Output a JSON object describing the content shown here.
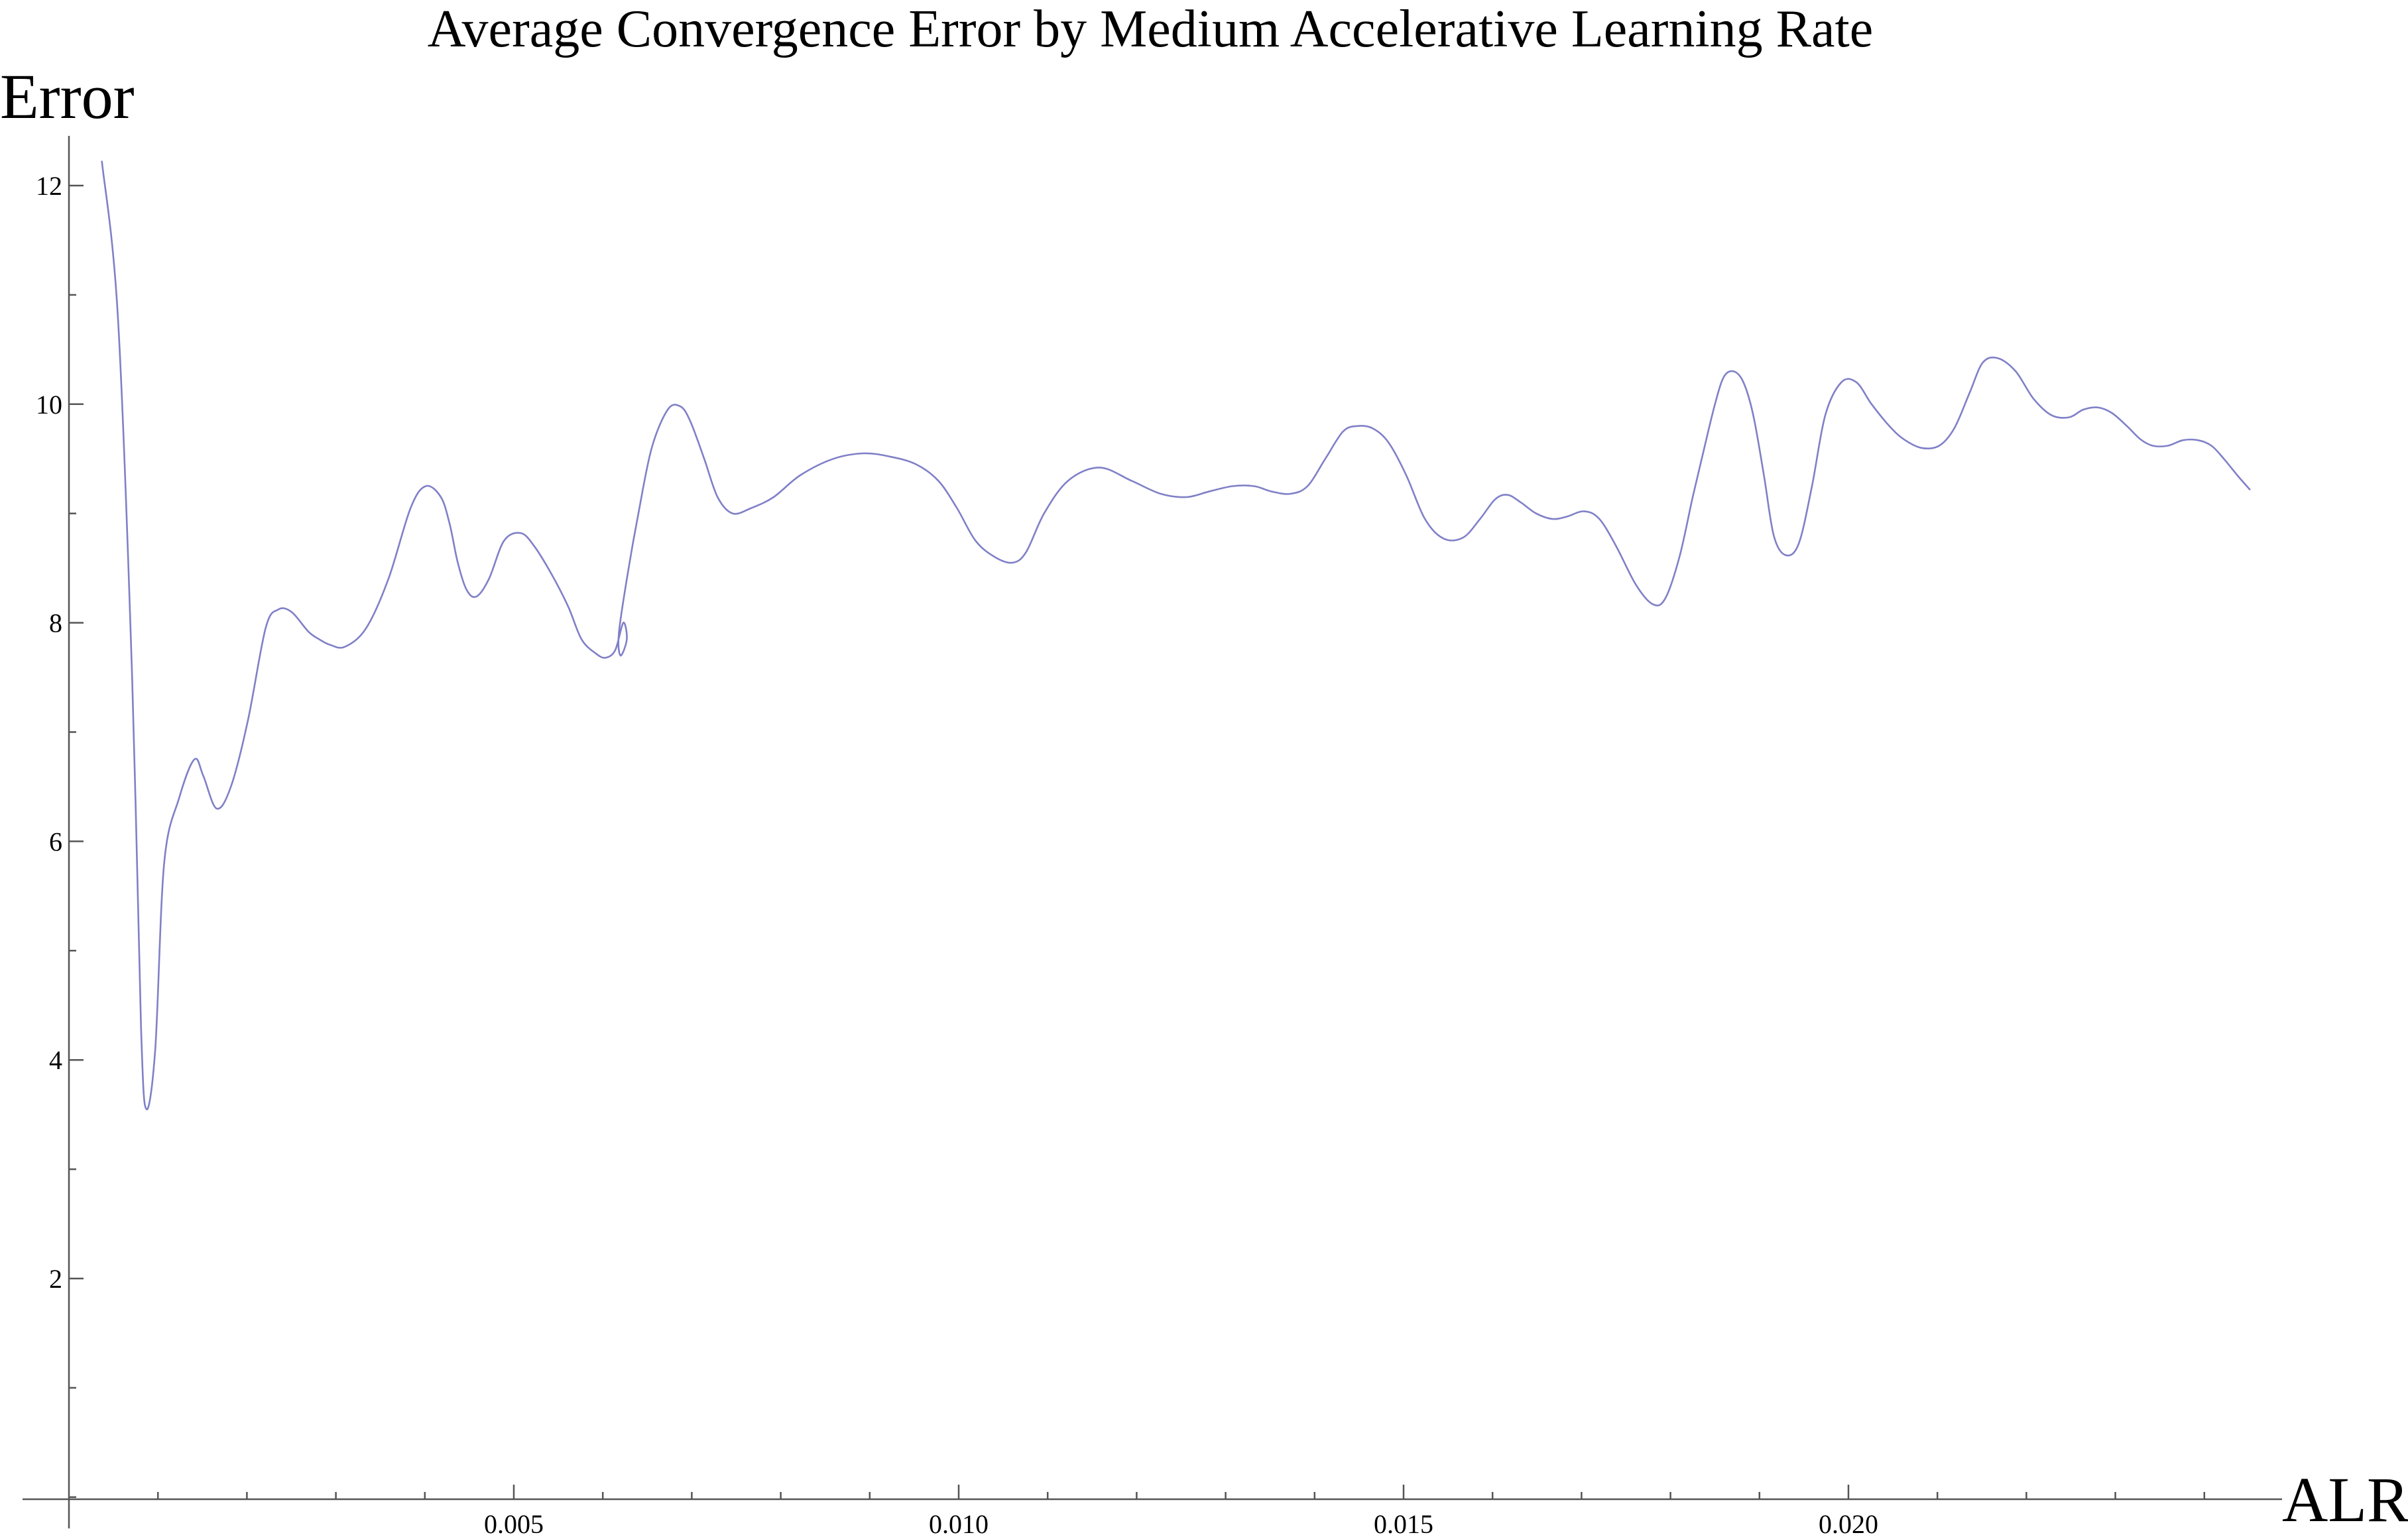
{
  "chart_data": {
    "type": "line",
    "title": "Average Convergence Error by Medium Accelerative Learning Rate",
    "xlabel": "ALR",
    "ylabel": "Error",
    "xlim": [
      0,
      0.02495
    ],
    "ylim": [
      -2.05,
      12.45
    ],
    "x_ticks": [
      {
        "value": 0.005,
        "label": "0.005"
      },
      {
        "value": 0.01,
        "label": "0.010"
      },
      {
        "value": 0.015,
        "label": "0.015"
      },
      {
        "value": 0.02,
        "label": "0.020"
      }
    ],
    "x_minor_ticks": [
      0.001,
      0.002,
      0.003,
      0.004,
      0.006,
      0.007,
      0.008,
      0.009,
      0.011,
      0.012,
      0.013,
      0.014,
      0.016,
      0.017,
      0.018,
      0.019,
      0.021,
      0.022,
      0.023,
      0.024
    ],
    "y_ticks": [
      {
        "value": 2,
        "label": "2"
      },
      {
        "value": 4,
        "label": "4"
      },
      {
        "value": 6,
        "label": "6"
      },
      {
        "value": 8,
        "label": "8"
      },
      {
        "value": 10,
        "label": "10"
      },
      {
        "value": 12,
        "label": "12"
      }
    ],
    "y_minor_ticks": [
      -1,
      0,
      1,
      3,
      5,
      7,
      9,
      11
    ],
    "grid": false,
    "series": [
      {
        "color": "#8080c8",
        "x": [
          0.00037,
          0.00055,
          0.00071,
          0.00081,
          0.00087,
          0.00097,
          0.00107,
          0.00124,
          0.00141,
          0.00151,
          0.00166,
          0.00182,
          0.00201,
          0.00221,
          0.00235,
          0.0025,
          0.00269,
          0.00281,
          0.00293,
          0.0031,
          0.00334,
          0.00359,
          0.00384,
          0.00401,
          0.00418,
          0.00428,
          0.00437,
          0.00447,
          0.00458,
          0.00472,
          0.00489,
          0.00508,
          0.00523,
          0.00542,
          0.00561,
          0.00576,
          0.00592,
          0.00603,
          0.00614,
          0.00623,
          0.00627,
          0.0062,
          0.00618,
          0.00628,
          0.0064,
          0.00655,
          0.00673,
          0.00687,
          0.00698,
          0.00714,
          0.00729,
          0.00746,
          0.00767,
          0.00792,
          0.00822,
          0.00859,
          0.00893,
          0.00923,
          0.00952,
          0.00977,
          0.00998,
          0.01019,
          0.01041,
          0.01061,
          0.01076,
          0.01096,
          0.01123,
          0.01158,
          0.01194,
          0.01227,
          0.01256,
          0.01281,
          0.01308,
          0.01332,
          0.01352,
          0.01373,
          0.01392,
          0.01412,
          0.01432,
          0.01448,
          0.01465,
          0.01483,
          0.01503,
          0.01524,
          0.01545,
          0.01567,
          0.01586,
          0.01603,
          0.01617,
          0.01632,
          0.01649,
          0.01667,
          0.01683,
          0.01703,
          0.0172,
          0.01739,
          0.01761,
          0.0178,
          0.01794,
          0.0181,
          0.01825,
          0.01838,
          0.0185,
          0.0186,
          0.01871,
          0.01882,
          0.01893,
          0.01905,
          0.01916,
          0.01929,
          0.01944,
          0.01959,
          0.01974,
          0.01992,
          0.02009,
          0.02026,
          0.02046,
          0.02062,
          0.02082,
          0.02102,
          0.02119,
          0.02136,
          0.02151,
          0.02168,
          0.02188,
          0.02208,
          0.02228,
          0.02248,
          0.02264,
          0.0228,
          0.02296,
          0.02313,
          0.02328,
          0.02342,
          0.02359,
          0.02376,
          0.02393,
          0.02408,
          0.02422,
          0.02437,
          0.02451
        ],
        "y": [
          12.22,
          10.8,
          7.5,
          4.3,
          3.55,
          4.1,
          5.8,
          6.4,
          6.75,
          6.6,
          6.3,
          6.5,
          7.1,
          7.95,
          8.12,
          8.1,
          7.92,
          7.85,
          7.8,
          7.78,
          7.95,
          8.4,
          9.05,
          9.25,
          9.15,
          8.9,
          8.55,
          8.3,
          8.24,
          8.4,
          8.75,
          8.82,
          8.7,
          8.45,
          8.15,
          7.85,
          7.72,
          7.68,
          7.75,
          8.0,
          7.85,
          7.7,
          7.9,
          8.45,
          9.0,
          9.6,
          9.95,
          9.98,
          9.85,
          9.5,
          9.15,
          9.0,
          9.05,
          9.15,
          9.35,
          9.5,
          9.55,
          9.52,
          9.45,
          9.3,
          9.05,
          8.75,
          8.6,
          8.55,
          8.65,
          9.0,
          9.3,
          9.42,
          9.3,
          9.18,
          9.15,
          9.2,
          9.25,
          9.25,
          9.2,
          9.18,
          9.25,
          9.5,
          9.75,
          9.8,
          9.78,
          9.65,
          9.35,
          8.95,
          8.77,
          8.78,
          8.95,
          9.13,
          9.17,
          9.1,
          9.0,
          8.95,
          8.97,
          9.02,
          8.95,
          8.7,
          8.35,
          8.17,
          8.22,
          8.6,
          9.15,
          9.6,
          10.0,
          10.25,
          10.3,
          10.2,
          9.9,
          9.35,
          8.8,
          8.62,
          8.72,
          9.25,
          9.9,
          10.2,
          10.2,
          10.0,
          9.8,
          9.68,
          9.6,
          9.62,
          9.78,
          10.1,
          10.38,
          10.42,
          10.3,
          10.05,
          9.9,
          9.88,
          9.95,
          9.97,
          9.92,
          9.8,
          9.68,
          9.62,
          9.62,
          9.67,
          9.67,
          9.62,
          9.5,
          9.35,
          9.22
        ]
      }
    ]
  }
}
